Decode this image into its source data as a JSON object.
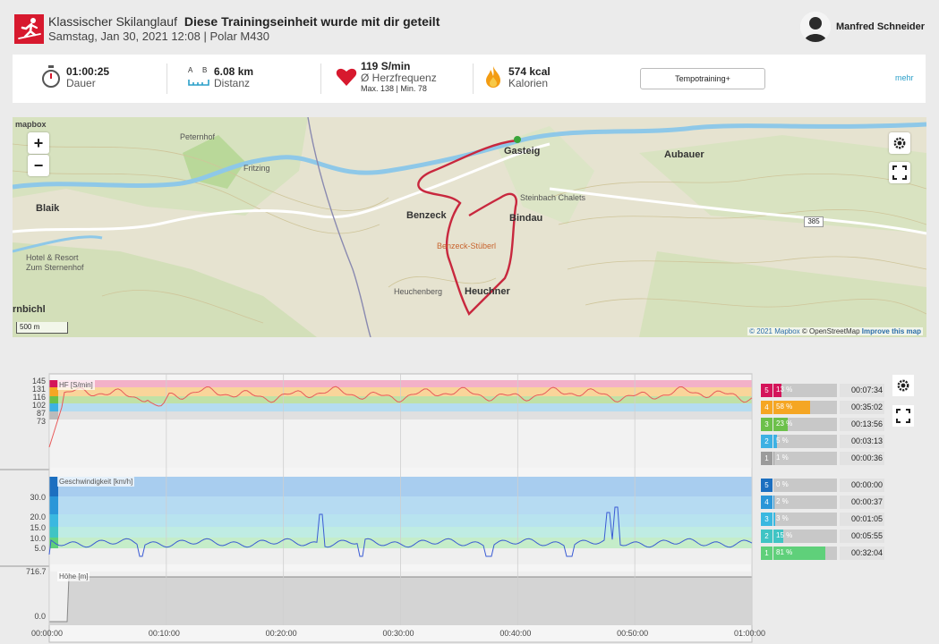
{
  "header": {
    "sport": "Klassischer Skilanglauf",
    "shared": "Diese Trainingseinheit wurde mit dir geteilt",
    "meta": "Samstag, Jan 30, 2021 12:08 | Polar M430",
    "user": "Manfred Schneider"
  },
  "summary": {
    "duration_value": "01:00:25",
    "duration_label": "Dauer",
    "distance_value": "6.08 km",
    "distance_label": "Distanz",
    "distance_icon_a": "A",
    "distance_icon_b": "B",
    "hr_value": "119 S/min",
    "hr_label": "Ø Herzfrequenz",
    "hr_extra": "Max. 138  |  Min. 78",
    "cal_value": "574 kcal",
    "cal_label": "Kalorien",
    "tempo_button": "Tempotraining+",
    "more_link": "mehr"
  },
  "map": {
    "logo": "mapbox",
    "zoom_in": "+",
    "zoom_out": "−",
    "scale": "500 m",
    "places": [
      "Peternhof",
      "Gasteig",
      "Aubauer",
      "Blaik",
      "Benzeck",
      "Bindau",
      "Fritzing",
      "Hotel & Resort Zum Sternenhof",
      "Heuchenberg",
      "Heuchner",
      "Benzeck-Stüberl",
      "Steinbach Chalets",
      "rnbichl"
    ],
    "road_shield": "385",
    "attribution_1": "© 2021 Mapbox",
    "attribution_2": "© OpenStreetMap",
    "attribution_3": "Improve this map",
    "colors": {
      "route": "#c8283e",
      "river": "#8ec8e8",
      "terrain": "#e8e4d3"
    }
  },
  "hr_panel": {
    "title": "HF [S/min]",
    "ticks": [
      "145",
      "131",
      "116",
      "102",
      "87",
      "73"
    ],
    "zones": [
      {
        "num": "5",
        "pct": "13 %",
        "time": "00:07:34",
        "fraction": 0.13,
        "color": "#d4145a"
      },
      {
        "num": "4",
        "pct": "58 %",
        "time": "00:35:02",
        "fraction": 0.58,
        "color": "#f5a623"
      },
      {
        "num": "3",
        "pct": "23 %",
        "time": "00:13:56",
        "fraction": 0.23,
        "color": "#6cc04a"
      },
      {
        "num": "2",
        "pct": "5 %",
        "time": "00:03:13",
        "fraction": 0.05,
        "color": "#3db1e3"
      },
      {
        "num": "1",
        "pct": "1 %",
        "time": "00:00:36",
        "fraction": 0.01,
        "color": "#9b9b9b"
      }
    ]
  },
  "speed_panel": {
    "title": "Geschwindigkeit [km/h]",
    "ticks": [
      "30.0",
      "20.0",
      "15.0",
      "10.0",
      "5.0"
    ],
    "zones": [
      {
        "num": "5",
        "pct": "0 %",
        "time": "00:00:00",
        "fraction": 0.0,
        "color": "#1c6fc0"
      },
      {
        "num": "4",
        "pct": "2 %",
        "time": "00:00:37",
        "fraction": 0.02,
        "color": "#2a96d8"
      },
      {
        "num": "3",
        "pct": "3 %",
        "time": "00:01:05",
        "fraction": 0.03,
        "color": "#3ab8e0"
      },
      {
        "num": "2",
        "pct": "15 %",
        "time": "00:05:55",
        "fraction": 0.15,
        "color": "#3fc4c4"
      },
      {
        "num": "1",
        "pct": "81 %",
        "time": "00:32:04",
        "fraction": 0.81,
        "color": "#5fd07a"
      }
    ]
  },
  "alt_panel": {
    "title": "Höhe [m]",
    "ticks": [
      "716.7",
      "0.0"
    ]
  },
  "time_axis": [
    "00:00:00",
    "00:10:00",
    "00:20:00",
    "00:30:00",
    "00:40:00",
    "00:50:00",
    "01:00:00"
  ]
}
